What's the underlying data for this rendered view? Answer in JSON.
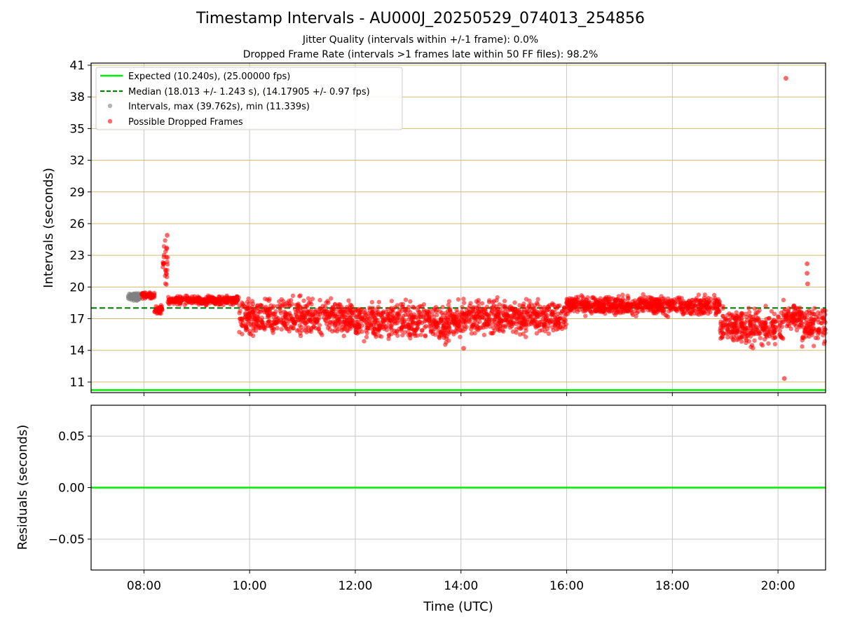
{
  "chart_data": [
    {
      "type": "scatter",
      "title": "Timestamp Intervals - AU000J_20250529_074013_254856",
      "subtitle_lines": [
        "Jitter Quality (intervals within +/-1 frame): 0.0%",
        "Dropped Frame Rate (intervals >1 frames late within 50 FF files): 98.2%"
      ],
      "ylabel": "Intervals (seconds)",
      "xlim_hours": [
        7.0,
        20.9
      ],
      "ylim": [
        10.0,
        41.2
      ],
      "y_ticks": [
        11,
        14,
        17,
        20,
        23,
        26,
        29,
        32,
        35,
        38,
        41
      ],
      "y_tick_labels": [
        "11",
        "14",
        "17",
        "20",
        "23",
        "26",
        "29",
        "32",
        "35",
        "38",
        "41"
      ],
      "grid": true,
      "legend_placement": "top-left",
      "legend": [
        "Expected (10.240s), (25.00000 fps)",
        "Median (18.013 +/- 1.243 s), (14.17905 +/- 0.97 fps)",
        "Intervals, max (39.762s), min (11.339s)",
        "Possible Dropped Frames"
      ],
      "colors": {
        "expected": "#00ee00",
        "median": "#008000",
        "intervals": "#808080",
        "dropped": "#ff0000",
        "hgrid": "#d4bb6a",
        "vgrid": "#c8c8c8"
      },
      "expected_value": 10.24,
      "median_value": 18.013,
      "max_interval": 39.762,
      "min_interval": 11.339,
      "intervals_gray": {
        "x_range_hours": [
          7.7,
          7.95
        ],
        "y_range": [
          18.7,
          19.4
        ]
      },
      "dropped_profile": [
        {
          "x": [
            7.95,
            8.2
          ],
          "y": [
            18.8,
            19.6
          ]
        },
        {
          "x": [
            8.2,
            8.35
          ],
          "y": [
            17.3,
            18.5
          ]
        },
        {
          "x": [
            8.35,
            8.45
          ],
          "y": [
            19.0,
            25.0
          ]
        },
        {
          "x": [
            8.45,
            9.8
          ],
          "y": [
            18.2,
            19.3
          ]
        },
        {
          "x": [
            9.8,
            12.0
          ],
          "y": [
            14.7,
            19.5
          ]
        },
        {
          "x": [
            12.0,
            14.0
          ],
          "y": [
            14.2,
            19.3
          ]
        },
        {
          "x": [
            14.0,
            16.0
          ],
          "y": [
            15.0,
            19.3
          ]
        },
        {
          "x": [
            16.0,
            18.9
          ],
          "y": [
            17.0,
            19.5
          ]
        },
        {
          "x": [
            18.9,
            20.1
          ],
          "y": [
            13.9,
            18.5
          ]
        },
        {
          "x": [
            20.1,
            20.45
          ],
          "y": [
            15.5,
            19.0
          ]
        },
        {
          "x": [
            20.45,
            20.9
          ],
          "y": [
            14.0,
            18.6
          ]
        }
      ],
      "dropped_outliers": [
        {
          "x": 20.15,
          "y": 39.762
        },
        {
          "x": 20.12,
          "y": 11.339
        },
        {
          "x": 20.55,
          "y": 22.2
        },
        {
          "x": 20.55,
          "y": 21.3
        },
        {
          "x": 20.56,
          "y": 20.3
        },
        {
          "x": 8.44,
          "y": 24.9
        },
        {
          "x": 8.43,
          "y": 23.7
        },
        {
          "x": 14.05,
          "y": 14.2
        }
      ]
    },
    {
      "type": "line",
      "xlabel": "Time (UTC)",
      "ylabel": "Residuals (seconds)",
      "xlim_hours": [
        7.0,
        20.9
      ],
      "ylim": [
        -0.08,
        0.08
      ],
      "y_ticks": [
        -0.05,
        0.0,
        0.05
      ],
      "y_tick_labels": [
        "−0.05",
        "0.00",
        "0.05"
      ],
      "x_ticks_hours": [
        8,
        10,
        12,
        14,
        16,
        18,
        20
      ],
      "x_tick_labels": [
        "08:00",
        "10:00",
        "12:00",
        "14:00",
        "16:00",
        "18:00",
        "20:00"
      ],
      "residual_value": 0.0,
      "grid": true
    }
  ]
}
